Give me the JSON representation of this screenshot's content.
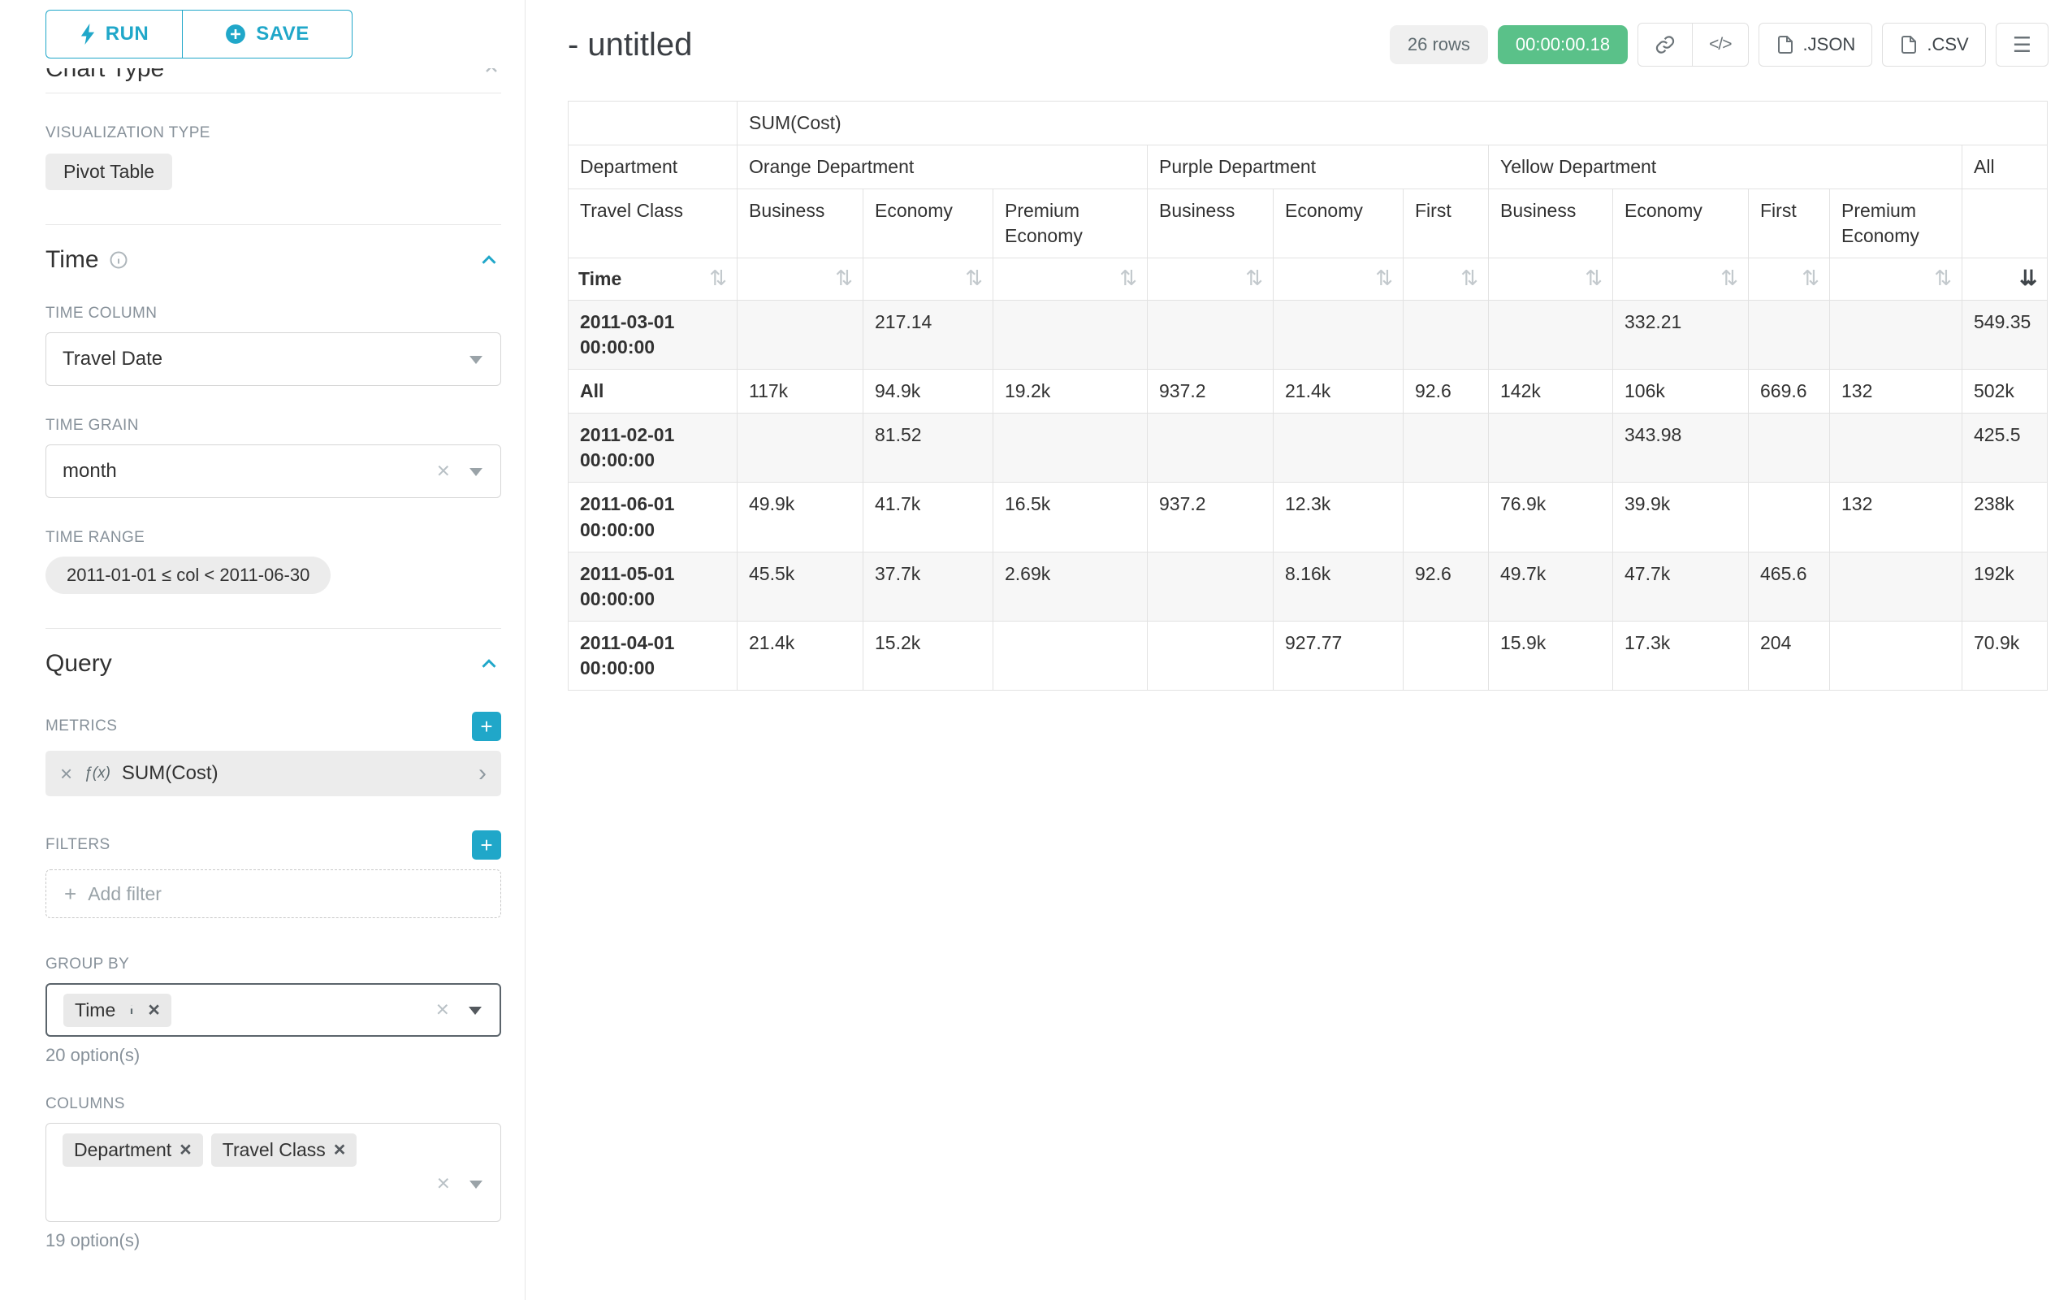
{
  "colors": {
    "accent": "#20a7c9",
    "success": "#5ac189",
    "border": "#e2e2e2",
    "zebra": "#f7f7f7",
    "label_gray": "#87919a"
  },
  "icons": {
    "close_glyph": "×",
    "plus_glyph": "+",
    "code_glyph": "</>",
    "menu_glyph": "☰",
    "sort_glyph": "⇅",
    "sort_active_glyph": "⇊",
    "metric_caret_glyph": "›"
  },
  "sidebar": {
    "run_label": "RUN",
    "save_label": "SAVE",
    "chart_type_heading": "Chart Type",
    "visualization_type_label": "VISUALIZATION TYPE",
    "visualization_type_value": "Pivot Table",
    "time_section": {
      "title": "Time",
      "time_column_label": "TIME COLUMN",
      "time_column_value": "Travel Date",
      "time_grain_label": "TIME GRAIN",
      "time_grain_value": "month",
      "time_range_label": "TIME RANGE",
      "time_range_value": "2011-01-01 ≤ col < 2011-06-30"
    },
    "query_section": {
      "title": "Query",
      "metrics_label": "METRICS",
      "metric_prefix": "ƒ(x)",
      "metric_value": "SUM(Cost)",
      "filters_label": "FILTERS",
      "add_filter_label": "Add filter",
      "group_by_label": "GROUP BY",
      "group_by_values": [
        "Time"
      ],
      "group_by_options_count": "20 option(s)",
      "columns_label": "COLUMNS",
      "columns_values": [
        "Department",
        "Travel Class"
      ],
      "columns_options_count": "19 option(s)"
    }
  },
  "header": {
    "title": "- untitled",
    "rows_badge": "26 rows",
    "timer_badge": "00:00:00.18",
    "json_label": ".JSON",
    "csv_label": ".CSV"
  },
  "chart_data": {
    "type": "table",
    "metric_header": "SUM(Cost)",
    "row_dimension": "Time",
    "column_dimensions": [
      "Department",
      "Travel Class"
    ],
    "column_groups": [
      {
        "label": "Orange Department",
        "columns": [
          "Business",
          "Economy",
          "Premium Economy"
        ]
      },
      {
        "label": "Purple Department",
        "columns": [
          "Business",
          "Economy",
          "First"
        ]
      },
      {
        "label": "Yellow Department",
        "columns": [
          "Business",
          "Economy",
          "First",
          "Premium Economy"
        ]
      },
      {
        "label": "All",
        "columns": [
          ""
        ]
      }
    ],
    "sorted_column_index": 10,
    "sort_direction": "descending",
    "rows": [
      {
        "label": "2011-03-01 00:00:00",
        "values": [
          "",
          "217.14",
          "",
          "",
          "",
          "",
          "",
          "332.21",
          "",
          "",
          "549.35"
        ]
      },
      {
        "label": "All",
        "values": [
          "117k",
          "94.9k",
          "19.2k",
          "937.2",
          "21.4k",
          "92.6",
          "142k",
          "106k",
          "669.6",
          "132",
          "502k"
        ]
      },
      {
        "label": "2011-02-01 00:00:00",
        "values": [
          "",
          "81.52",
          "",
          "",
          "",
          "",
          "",
          "343.98",
          "",
          "",
          "425.5"
        ]
      },
      {
        "label": "2011-06-01 00:00:00",
        "values": [
          "49.9k",
          "41.7k",
          "16.5k",
          "937.2",
          "12.3k",
          "",
          "76.9k",
          "39.9k",
          "",
          "132",
          "238k"
        ]
      },
      {
        "label": "2011-05-01 00:00:00",
        "values": [
          "45.5k",
          "37.7k",
          "2.69k",
          "",
          "8.16k",
          "92.6",
          "49.7k",
          "47.7k",
          "465.6",
          "",
          "192k"
        ]
      },
      {
        "label": "2011-04-01 00:00:00",
        "values": [
          "21.4k",
          "15.2k",
          "",
          "",
          "927.77",
          "",
          "15.9k",
          "17.3k",
          "204",
          "",
          "70.9k"
        ]
      }
    ]
  }
}
